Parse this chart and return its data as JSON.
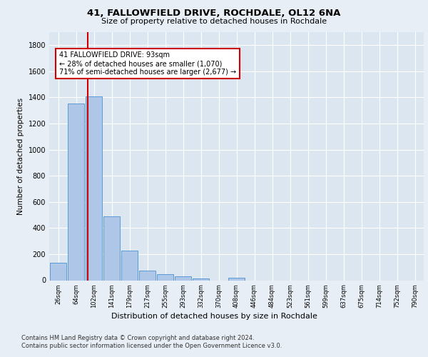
{
  "title1": "41, FALLOWFIELD DRIVE, ROCHDALE, OL12 6NA",
  "title2": "Size of property relative to detached houses in Rochdale",
  "xlabel": "Distribution of detached houses by size in Rochdale",
  "ylabel": "Number of detached properties",
  "bar_labels": [
    "26sqm",
    "64sqm",
    "102sqm",
    "141sqm",
    "179sqm",
    "217sqm",
    "255sqm",
    "293sqm",
    "332sqm",
    "370sqm",
    "408sqm",
    "446sqm",
    "484sqm",
    "523sqm",
    "561sqm",
    "599sqm",
    "637sqm",
    "675sqm",
    "714sqm",
    "752sqm",
    "790sqm"
  ],
  "bar_values": [
    135,
    1355,
    1410,
    490,
    225,
    75,
    45,
    28,
    15,
    0,
    20,
    0,
    0,
    0,
    0,
    0,
    0,
    0,
    0,
    0,
    0
  ],
  "bar_color": "#aec6e8",
  "bar_edge_color": "#5b9bd5",
  "property_line_x": 1.67,
  "annotation_text": "41 FALLOWFIELD DRIVE: 93sqm\n← 28% of detached houses are smaller (1,070)\n71% of semi-detached houses are larger (2,677) →",
  "annotation_box_color": "#ffffff",
  "annotation_border_color": "#cc0000",
  "line_color": "#cc0000",
  "ylim": [
    0,
    1900
  ],
  "footer1": "Contains HM Land Registry data © Crown copyright and database right 2024.",
  "footer2": "Contains public sector information licensed under the Open Government Licence v3.0.",
  "background_color": "#e8eef5",
  "plot_background": "#dce6f0"
}
